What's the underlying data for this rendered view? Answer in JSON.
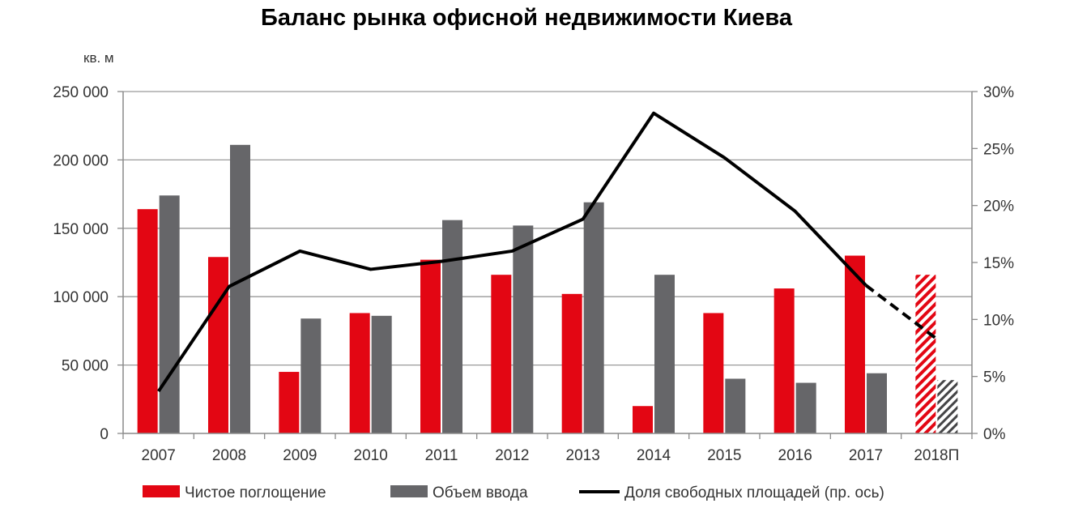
{
  "chart_data": {
    "type": "bar",
    "title": "Баланс рынка офисной недвижимости Киева",
    "y_unit_label": "кв. м",
    "categories": [
      "2007",
      "2008",
      "2009",
      "2010",
      "2011",
      "2012",
      "2013",
      "2014",
      "2015",
      "2016",
      "2017",
      "2018П"
    ],
    "forecast_category": "2018П",
    "ylim": [
      0,
      250000
    ],
    "y_ticks": [
      0,
      50000,
      100000,
      150000,
      200000,
      250000
    ],
    "y_tick_labels": [
      "0",
      "50 000",
      "100 000",
      "150 000",
      "200 000",
      "250 000"
    ],
    "y2lim": [
      0,
      30
    ],
    "y2_ticks": [
      0,
      5,
      10,
      15,
      20,
      25,
      30
    ],
    "y2_tick_labels": [
      "0%",
      "5%",
      "10%",
      "15%",
      "20%",
      "25%",
      "30%"
    ],
    "grid": true,
    "legend_position": "bottom",
    "series": [
      {
        "name": "Чистое поглощение",
        "kind": "bar",
        "color": "#e30613",
        "values": [
          164000,
          129000,
          45000,
          88000,
          127000,
          116000,
          102000,
          20000,
          88000,
          106000,
          130000,
          116000
        ]
      },
      {
        "name": "Объем ввода",
        "kind": "bar",
        "color": "#666669",
        "values": [
          174000,
          211000,
          84000,
          86000,
          156000,
          152000,
          169000,
          116000,
          40000,
          37000,
          44000,
          39000
        ]
      },
      {
        "name": "Доля свободных площадей (пр. ось)",
        "kind": "line",
        "axis": "right",
        "color": "#000000",
        "values": [
          3.7,
          12.9,
          16.0,
          14.4,
          15.1,
          16.0,
          18.8,
          28.1,
          24.2,
          19.5,
          13.0,
          8.3
        ]
      }
    ]
  }
}
